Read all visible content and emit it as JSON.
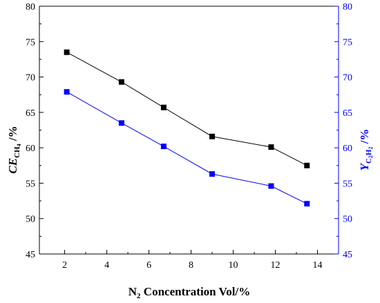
{
  "chart_data": {
    "type": "line",
    "x": [
      2.1,
      4.7,
      6.7,
      9.0,
      11.8,
      13.5
    ],
    "series": [
      {
        "axis": "left",
        "color": "#000000",
        "marker": "square",
        "values": [
          73.5,
          69.3,
          65.7,
          61.6,
          60.1,
          57.5
        ]
      },
      {
        "axis": "right",
        "color": "#0000ff",
        "marker": "square",
        "values": [
          67.9,
          63.5,
          60.2,
          56.3,
          54.6,
          52.1
        ]
      }
    ],
    "xlabel": {
      "main": "N",
      "sub": "2",
      "rest": " Concentration Vol/%"
    },
    "ylabel_left": {
      "main": "CE",
      "sub": "CH",
      "subsub": "4",
      "rest": " /%"
    },
    "ylabel_right": {
      "main": "Y",
      "sub": "C",
      "subsub1": "2",
      "sub2": "H",
      "subsub2": "2",
      "rest": " /%"
    },
    "xlim": [
      0.8,
      15
    ],
    "ylim_left": [
      45,
      80
    ],
    "ylim_right": [
      45,
      80
    ],
    "x_ticks": [
      "2",
      "4",
      "6",
      "8",
      "10",
      "12",
      "14"
    ],
    "x_tick_values": [
      2,
      4,
      6,
      8,
      10,
      12,
      14
    ],
    "y_ticks": [
      "45",
      "50",
      "55",
      "60",
      "65",
      "70",
      "75",
      "80"
    ],
    "y_tick_values": [
      45,
      50,
      55,
      60,
      65,
      70,
      75,
      80
    ],
    "grid": false,
    "legend": "none",
    "left_axis_color": "#000000",
    "right_axis_color": "#0000ff"
  }
}
